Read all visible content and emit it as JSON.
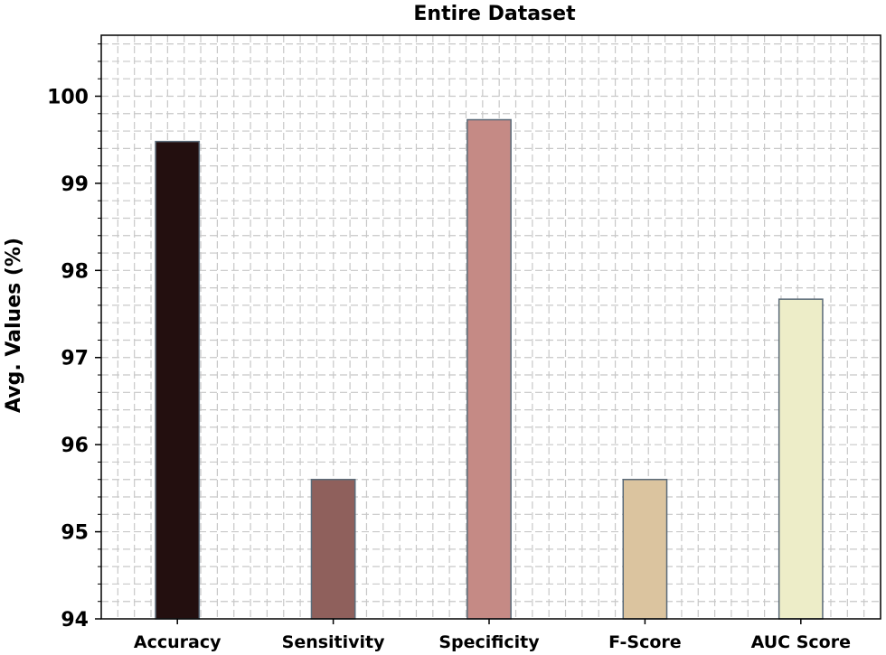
{
  "chart_data": {
    "type": "bar",
    "title": "Entire Dataset",
    "xlabel": "",
    "ylabel": "Avg. Values (%)",
    "categories": [
      "Accuracy",
      "Sensitivity",
      "Specificity",
      "F-Score",
      "AUC Score"
    ],
    "values": [
      99.48,
      95.6,
      99.73,
      95.6,
      97.67
    ],
    "ylim": [
      94,
      100.7
    ],
    "yticks": [
      "94",
      "95",
      "96",
      "97",
      "98",
      "99",
      "100"
    ],
    "colors": [
      "#230f0f",
      "#8f605c",
      "#c58a85",
      "#dbc49f",
      "#ededc8"
    ],
    "bar_edge_color": "#5a6a78",
    "grid": true,
    "grid_style": "dashed major and minor, light gray"
  }
}
